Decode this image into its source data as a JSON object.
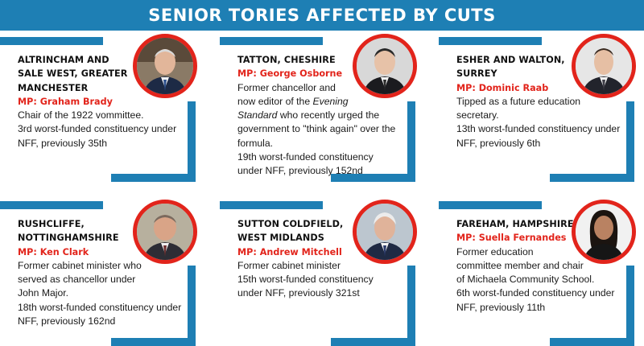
{
  "title": "SENIOR TORIES AFFECTED BY CUTS",
  "colors": {
    "accent_blue": "#1e7fb4",
    "accent_red": "#e2241b"
  },
  "cards": [
    {
      "place": "ALTRINCHAM AND\nSALE WEST, GREATER\nMANCHESTER",
      "mp": "MP: Graham Brady",
      "desc": "Chair of the 1922 vommittee.",
      "funding": "3rd worst-funded constituency under\nNFF, previously 35th"
    },
    {
      "place": "TATTON, CHESHIRE",
      "mp": "MP: George Osborne",
      "desc_pre": "Former chancellor and\nnow editor of the ",
      "desc_italic": "Evening\nStandard",
      "desc_post": " who recently urged the\ngovernment to \"think again\" over the\nformula.",
      "funding": "19th worst-funded constituency\nunder NFF, previously 152nd"
    },
    {
      "place": "ESHER AND WALTON,\nSURREY",
      "mp": "MP: Dominic Raab",
      "desc": "Tipped as a future education\nsecretary.",
      "funding": "13th worst-funded constituency under\nNFF, previously 6th"
    },
    {
      "place": "RUSHCLIFFE,\nNOTTINGHAMSHIRE",
      "mp": "MP: Ken Clark",
      "desc": "Former cabinet minister who\nserved as chancellor under\nJohn Major.",
      "funding": "18th worst-funded constituency under\nNFF, previously 162nd"
    },
    {
      "place": "SUTTON COLDFIELD,\nWEST MIDLANDS",
      "mp": "MP: Andrew Mitchell",
      "desc": "Former cabinet minister",
      "funding": "15th worst-funded constituency\nunder NFF, previously 321st"
    },
    {
      "place": "FAREHAM, HAMPSHIRE",
      "mp": "MP: Suella Fernandes",
      "desc": "Former education\ncommittee member and chair\nof Michaela Community School.",
      "funding": "6th worst-funded constituency under\nNFF, previously 11th"
    }
  ]
}
